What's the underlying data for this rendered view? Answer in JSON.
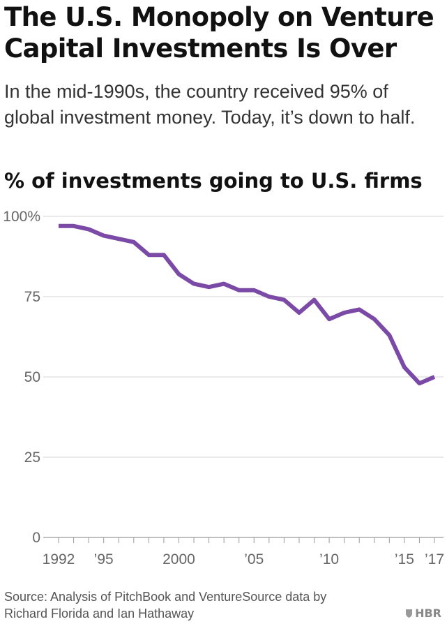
{
  "title": "The U.S. Monopoly on Venture Capital Investments Is Over",
  "subtitle": "In the mid-1990s, the country received 95% of global investment money. Today, it’s down to half.",
  "source": "Source: Analysis of PitchBook and VentureSource data by Richard Florida and Ian Hathaway",
  "brand": "HBR",
  "chart_data": {
    "type": "line",
    "title": "% of investments going to U.S. firms",
    "xlabel": "",
    "ylabel": "",
    "x": [
      1992,
      1993,
      1994,
      1995,
      1996,
      1997,
      1998,
      1999,
      2000,
      2001,
      2002,
      2003,
      2004,
      2005,
      2006,
      2007,
      2008,
      2009,
      2010,
      2011,
      2012,
      2013,
      2014,
      2015,
      2016,
      2017
    ],
    "series": [
      {
        "values": [
          97,
          97,
          96,
          94,
          93,
          92,
          88,
          88,
          82,
          79,
          78,
          79,
          77,
          77,
          75,
          74,
          70,
          74,
          68,
          70,
          71,
          68,
          63,
          53,
          48,
          50
        ]
      }
    ],
    "xlim": [
      1992,
      2017
    ],
    "ylim": [
      0,
      100
    ],
    "yticks": [
      {
        "value": 0,
        "label": "0"
      },
      {
        "value": 25,
        "label": "25"
      },
      {
        "value": 50,
        "label": "50"
      },
      {
        "value": 75,
        "label": "75"
      },
      {
        "value": 100,
        "label": "100%"
      }
    ],
    "xticks": [
      {
        "value": 1992,
        "label": "1992"
      },
      {
        "value": 1995,
        "label": "’95"
      },
      {
        "value": 2000,
        "label": "2000"
      },
      {
        "value": 2005,
        "label": "’05"
      },
      {
        "value": 2010,
        "label": "’10"
      },
      {
        "value": 2015,
        "label": "’15"
      },
      {
        "value": 2017,
        "label": "’17"
      }
    ],
    "grid": true,
    "line_color": "#7b4aa6",
    "grid_color": "#d4d4d4"
  }
}
